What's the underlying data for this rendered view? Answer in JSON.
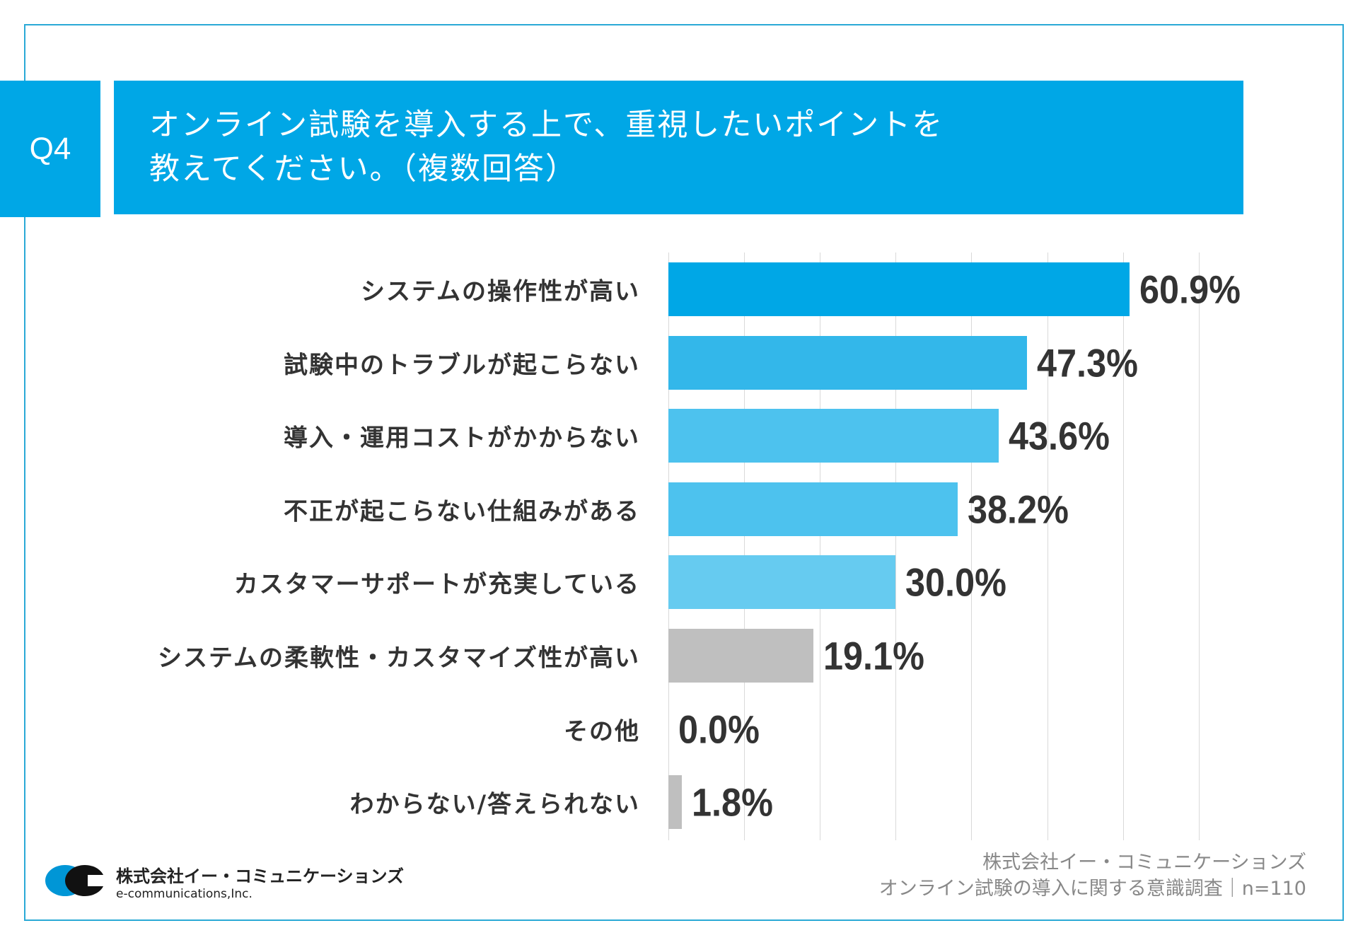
{
  "question_badge": "Q4",
  "title_lines": [
    "オンライン試験を導入する上で、重視したいポイントを",
    "教えてください。（複数回答）"
  ],
  "chart_data": {
    "type": "bar",
    "orientation": "horizontal",
    "categories": [
      "システムの操作性が高い",
      "試験中のトラブルが起こらない",
      "導入・運用コストがかからない",
      "不正が起こらない仕組みがある",
      "カスタマーサポートが充実している",
      "システムの柔軟性・カスタマイズ性が高い",
      "その他",
      "わからない/答えられない"
    ],
    "values": [
      60.9,
      47.3,
      43.6,
      38.2,
      30.0,
      19.1,
      0.0,
      1.8
    ],
    "value_labels": [
      "60.9%",
      "47.3%",
      "43.6%",
      "38.2%",
      "30.0%",
      "19.1%",
      "0.0%",
      "1.8%"
    ],
    "colors": [
      "#00a7e6",
      "#33b7ea",
      "#4dc2ee",
      "#4dc2ee",
      "#66cbf0",
      "#bfbfbf",
      "#bfbfbf",
      "#bfbfbf"
    ],
    "xlim": [
      0,
      70
    ],
    "grid": true,
    "gridline_step": 10
  },
  "footer": {
    "company": "株式会社イー・コミュニケーションズ",
    "survey": "オンライン試験の導入に関する意識調査｜n=110"
  },
  "logo": {
    "name_jp": "株式会社イー・コミュニケーションズ",
    "name_en": "e-communications,Inc.",
    "mark_text": "e-communications"
  }
}
